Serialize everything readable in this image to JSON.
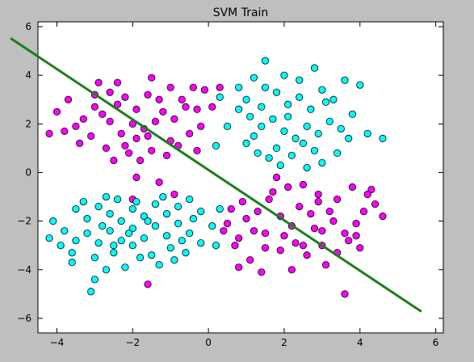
{
  "chart_data": {
    "type": "scatter",
    "title": "SVM Train",
    "xlabel": "",
    "ylabel": "",
    "xlim": [
      -4.5,
      6.2
    ],
    "ylim": [
      -6.6,
      6.2
    ],
    "xticks": [
      -4,
      -2,
      0,
      2,
      4,
      6
    ],
    "yticks": [
      -6,
      -4,
      -2,
      0,
      2,
      4,
      6
    ],
    "grid": false,
    "legend": "none",
    "colors": {
      "magenta": "#ff00ff",
      "cyan": "#00ffff",
      "line": "#1a7f1a"
    },
    "series": [
      {
        "values": [
          [
            -2.6,
            3.3
          ],
          [
            -2.4,
            2.8
          ],
          [
            -2.2,
            3.1
          ],
          [
            -2.8,
            2.4
          ],
          [
            -1.9,
            2.6
          ],
          [
            -1.6,
            3.2
          ],
          [
            -2.0,
            2.0
          ],
          [
            -1.7,
            1.8
          ],
          [
            -2.3,
            1.6
          ],
          [
            -1.9,
            1.4
          ],
          [
            -1.4,
            2.1
          ],
          [
            -1.2,
            2.5
          ],
          [
            -0.9,
            2.2
          ],
          [
            -0.6,
            2.7
          ],
          [
            -0.3,
            2.6
          ],
          [
            -0.1,
            3.4
          ],
          [
            -3.0,
            2.7
          ],
          [
            -3.3,
            2.2
          ],
          [
            -3.5,
            1.9
          ],
          [
            -3.8,
            1.7
          ],
          [
            -4.2,
            1.6
          ],
          [
            -3.1,
            1.5
          ],
          [
            -3.4,
            1.2
          ],
          [
            -2.7,
            1.0
          ],
          [
            -2.1,
            0.8
          ],
          [
            -1.8,
            0.5
          ],
          [
            -1.5,
            0.9
          ],
          [
            -1.1,
            0.7
          ],
          [
            -0.8,
            1.1
          ],
          [
            -0.5,
            1.6
          ],
          [
            -0.2,
            1.9
          ],
          [
            -1.3,
            -0.4
          ],
          [
            -1.9,
            -0.2
          ],
          [
            -1.0,
            3.5
          ],
          [
            -1.3,
            3.0
          ],
          [
            -2.4,
            3.7
          ],
          [
            -3.7,
            3.0
          ],
          [
            -4.0,
            2.5
          ],
          [
            -2.9,
            3.7
          ],
          [
            -1.5,
            3.9
          ],
          [
            -0.7,
            3.0
          ],
          [
            0.1,
            2.7
          ],
          [
            -0.4,
            3.5
          ],
          [
            -2.6,
            2.1
          ],
          [
            -2.5,
            0.5
          ],
          [
            -2.2,
            1.1
          ],
          [
            -0.3,
            0.9
          ],
          [
            0.3,
            3.5
          ],
          [
            -1.0,
            1.3
          ],
          [
            -1.6,
            1.5
          ],
          [
            -3.0,
            3.2
          ],
          [
            0.9,
            -1.2
          ],
          [
            1.3,
            -1.6
          ],
          [
            1.6,
            -1.1
          ],
          [
            1.9,
            -1.8
          ],
          [
            2.2,
            -2.2
          ],
          [
            2.4,
            -1.4
          ],
          [
            2.7,
            -1.7
          ],
          [
            3.0,
            -2.4
          ],
          [
            3.3,
            -2.0
          ],
          [
            3.6,
            -2.5
          ],
          [
            3.9,
            -2.1
          ],
          [
            4.1,
            -1.6
          ],
          [
            4.4,
            -1.3
          ],
          [
            4.6,
            -1.8
          ],
          [
            4.3,
            -0.7
          ],
          [
            3.8,
            -0.6
          ],
          [
            3.4,
            -1.1
          ],
          [
            2.9,
            -0.9
          ],
          [
            2.5,
            -0.5
          ],
          [
            2.1,
            -0.6
          ],
          [
            1.8,
            -0.2
          ],
          [
            1.2,
            -2.4
          ],
          [
            0.8,
            -2.7
          ],
          [
            0.5,
            -2.1
          ],
          [
            0.7,
            -3.0
          ],
          [
            1.1,
            -3.6
          ],
          [
            1.5,
            -3.1
          ],
          [
            1.9,
            -3.2
          ],
          [
            2.3,
            -2.9
          ],
          [
            2.6,
            -3.4
          ],
          [
            3.0,
            -3.0
          ],
          [
            3.4,
            -3.3
          ],
          [
            3.7,
            -2.8
          ],
          [
            4.0,
            -3.1
          ],
          [
            3.6,
            -5.0
          ],
          [
            2.2,
            -4.0
          ],
          [
            1.4,
            -4.1
          ],
          [
            0.8,
            -3.9
          ],
          [
            3.1,
            -3.8
          ],
          [
            3.9,
            -2.6
          ],
          [
            2.8,
            -2.3
          ],
          [
            2.0,
            -2.6
          ],
          [
            1.5,
            -2.5
          ],
          [
            1.0,
            -1.9
          ],
          [
            0.4,
            -2.4
          ],
          [
            4.2,
            -0.9
          ],
          [
            2.5,
            -3.0
          ],
          [
            1.7,
            -0.8
          ],
          [
            3.2,
            -1.6
          ],
          [
            -2.0,
            -1.1
          ],
          [
            -0.9,
            -0.9
          ],
          [
            -1.6,
            -4.6
          ],
          [
            2.9,
            -1.2
          ],
          [
            0.6,
            -1.5
          ]
        ]
      },
      {
        "values": [
          [
            1.5,
            4.6
          ],
          [
            1.2,
            3.9
          ],
          [
            0.8,
            3.5
          ],
          [
            1.0,
            3.0
          ],
          [
            1.4,
            2.7
          ],
          [
            1.8,
            3.3
          ],
          [
            2.1,
            2.8
          ],
          [
            2.4,
            3.1
          ],
          [
            2.7,
            2.6
          ],
          [
            3.0,
            3.4
          ],
          [
            3.3,
            3.0
          ],
          [
            3.6,
            3.8
          ],
          [
            4.0,
            3.6
          ],
          [
            1.1,
            2.3
          ],
          [
            1.4,
            1.9
          ],
          [
            1.7,
            2.2
          ],
          [
            2.0,
            1.7
          ],
          [
            2.3,
            1.4
          ],
          [
            2.6,
            1.9
          ],
          [
            2.9,
            1.6
          ],
          [
            3.2,
            2.1
          ],
          [
            3.5,
            1.8
          ],
          [
            3.7,
            1.4
          ],
          [
            4.2,
            1.6
          ],
          [
            4.6,
            1.4
          ],
          [
            1.0,
            1.2
          ],
          [
            1.3,
            0.8
          ],
          [
            1.6,
            0.6
          ],
          [
            1.9,
            0.3
          ],
          [
            2.2,
            0.7
          ],
          [
            2.5,
            1.2
          ],
          [
            2.8,
            0.9
          ],
          [
            3.0,
            0.4
          ],
          [
            3.4,
            0.8
          ],
          [
            0.2,
            1.1
          ],
          [
            0.5,
            1.9
          ],
          [
            0.8,
            2.6
          ],
          [
            2.0,
            4.0
          ],
          [
            2.4,
            3.8
          ],
          [
            2.8,
            4.3
          ],
          [
            3.8,
            2.4
          ],
          [
            1.2,
            1.5
          ],
          [
            1.8,
            1.0
          ],
          [
            2.6,
            0.2
          ],
          [
            0.3,
            3.1
          ],
          [
            2.1,
            2.3
          ],
          [
            1.5,
            3.5
          ],
          [
            3.1,
            2.9
          ],
          [
            -3.5,
            -1.5
          ],
          [
            -3.2,
            -1.9
          ],
          [
            -2.9,
            -1.4
          ],
          [
            -2.6,
            -1.7
          ],
          [
            -2.3,
            -2.0
          ],
          [
            -2.0,
            -1.5
          ],
          [
            -1.7,
            -1.8
          ],
          [
            -1.4,
            -1.3
          ],
          [
            -1.1,
            -1.7
          ],
          [
            -0.8,
            -1.4
          ],
          [
            -0.5,
            -1.1
          ],
          [
            -0.2,
            -1.6
          ],
          [
            -3.8,
            -2.4
          ],
          [
            -3.5,
            -2.8
          ],
          [
            -3.2,
            -2.5
          ],
          [
            -2.9,
            -2.9
          ],
          [
            -2.6,
            -2.4
          ],
          [
            -2.3,
            -2.8
          ],
          [
            -2.0,
            -2.3
          ],
          [
            -1.7,
            -2.7
          ],
          [
            -1.4,
            -2.2
          ],
          [
            -1.1,
            -2.6
          ],
          [
            -0.8,
            -2.1
          ],
          [
            -0.5,
            -2.5
          ],
          [
            -0.2,
            -2.9
          ],
          [
            0.1,
            -2.2
          ],
          [
            0.3,
            -1.5
          ],
          [
            -4.1,
            -2.0
          ],
          [
            -4.2,
            -2.7
          ],
          [
            -3.6,
            -3.3
          ],
          [
            -3.0,
            -3.5
          ],
          [
            -2.5,
            -3.3
          ],
          [
            -2.0,
            -3.0
          ],
          [
            -1.5,
            -3.4
          ],
          [
            -1.0,
            -3.1
          ],
          [
            -0.6,
            -3.3
          ],
          [
            -2.2,
            -3.9
          ],
          [
            -1.8,
            -3.5
          ],
          [
            -3.1,
            -4.9
          ],
          [
            -2.7,
            -4.0
          ],
          [
            -3.0,
            -4.4
          ],
          [
            -3.9,
            -3.0
          ],
          [
            -1.3,
            -3.8
          ],
          [
            -0.9,
            -3.6
          ],
          [
            -2.8,
            -2.2
          ],
          [
            -2.4,
            -1.1
          ],
          [
            -1.9,
            -1.2
          ],
          [
            -1.2,
            -1.0
          ],
          [
            -3.3,
            -1.2
          ],
          [
            -2.1,
            -2.5
          ],
          [
            -1.6,
            -2.0
          ],
          [
            -0.4,
            -1.9
          ],
          [
            -3.6,
            -3.7
          ],
          [
            -2.5,
            -3.0
          ],
          [
            0.2,
            -3.0
          ],
          [
            -0.7,
            -2.8
          ],
          [
            -2.7,
            -1.0
          ]
        ]
      }
    ],
    "decision_boundary": [
      [
        -5.2,
        5.5
      ],
      [
        5.6,
        -5.7
      ]
    ]
  }
}
